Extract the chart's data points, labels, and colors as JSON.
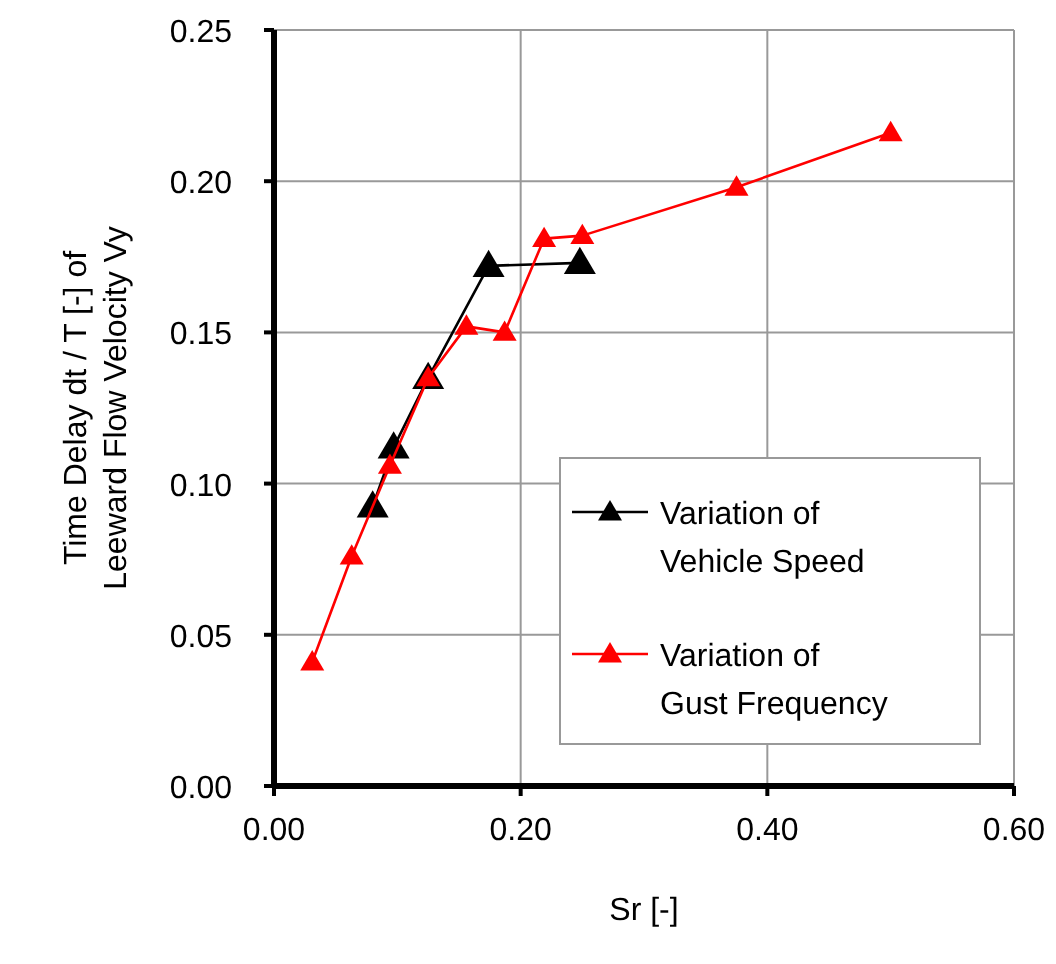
{
  "chart_data": {
    "type": "line",
    "xlabel": "Sr  [-]",
    "ylabel": "Time Delay dt / T  [-]  of Leeward Flow Velocity Vy",
    "xlim": [
      0,
      0.6
    ],
    "xticks": [
      {
        "value": 0,
        "label": "0.00"
      },
      {
        "value": 0.2,
        "label": "0.20"
      },
      {
        "value": 0.4,
        "label": "0.40"
      },
      {
        "value": 0.6,
        "label": "0.60"
      }
    ],
    "ylim": [
      0,
      0.25
    ],
    "yticks": [
      {
        "value": 0,
        "label": "0.00"
      },
      {
        "value": 0.05,
        "label": "0.05"
      },
      {
        "value": 0.1,
        "label": "0.10"
      },
      {
        "value": 0.15,
        "label": "0.15"
      },
      {
        "value": 0.2,
        "label": "0.20"
      },
      {
        "value": 0.25,
        "label": "0.25"
      }
    ],
    "grid": true,
    "legend": "bottom right",
    "marker": "triangle",
    "series": [
      {
        "name": "Variation of Vehicle Speed",
        "color": "#000000",
        "x": [
          0.08,
          0.097,
          0.125,
          0.174,
          0.248
        ],
        "values": [
          0.0925,
          0.112,
          0.135,
          0.172,
          0.173
        ]
      },
      {
        "name": "Variation of Gust Frequency",
        "color": "#ff0000",
        "x": [
          0.031,
          0.063,
          0.094,
          0.125,
          0.156,
          0.187,
          0.219,
          0.25,
          0.375,
          0.5
        ],
        "values": [
          0.041,
          0.076,
          0.106,
          0.135,
          0.152,
          0.15,
          0.181,
          0.182,
          0.198,
          0.216
        ]
      }
    ]
  }
}
